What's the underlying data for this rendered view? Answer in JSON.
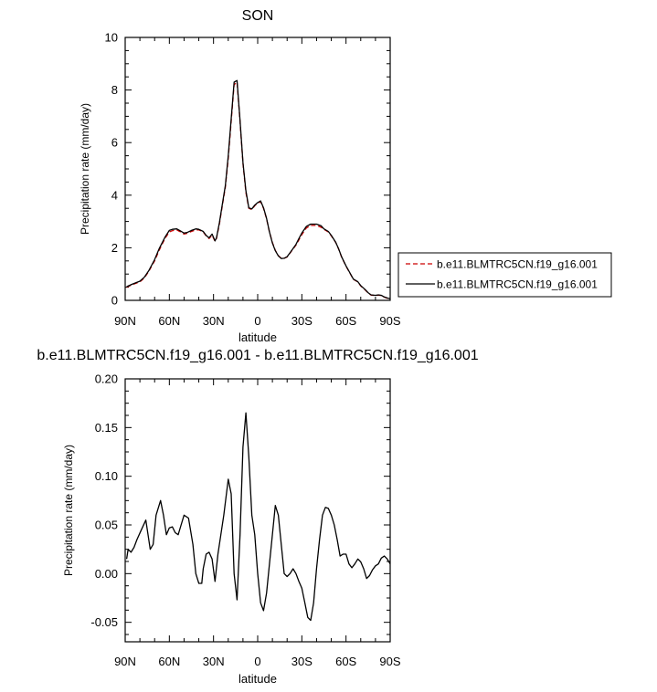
{
  "chart_data": [
    {
      "type": "line",
      "title": "SON",
      "xlabel": "latitude",
      "ylabel": "Precipitation rate (mm/day)",
      "xlim": [
        90,
        -90
      ],
      "ylim": [
        0,
        10
      ],
      "x_ticks": [
        90,
        60,
        30,
        0,
        -30,
        -60,
        -90
      ],
      "x_tick_labels": [
        "90N",
        "60N",
        "30N",
        "0",
        "30S",
        "60S",
        "90S"
      ],
      "y_ticks": [
        0,
        2,
        4,
        6,
        8,
        10
      ],
      "y_tick_labels": [
        "0",
        "2",
        "4",
        "6",
        "8",
        "10"
      ],
      "legend": "right",
      "series": [
        {
          "name": "b.e11.BLMTRC5CN.f19_g16.001",
          "color": "#cc0000",
          "dash": "dashed",
          "x": [
            89,
            85,
            80,
            77,
            74,
            70,
            67,
            63,
            60,
            58,
            55,
            53,
            50,
            48,
            45,
            42,
            40,
            37,
            35,
            33,
            31,
            29,
            28,
            26,
            24,
            22,
            20,
            18,
            16,
            14,
            12,
            10,
            8,
            6,
            4,
            2,
            0,
            -2,
            -4,
            -6,
            -8,
            -10,
            -12,
            -14,
            -16,
            -18,
            -20,
            -22,
            -24,
            -26,
            -28,
            -30,
            -33,
            -36,
            -40,
            -43,
            -45,
            -48,
            -50,
            -53,
            -55,
            -57,
            -60,
            -63,
            -65,
            -68,
            -70,
            -73,
            -75,
            -77,
            -80,
            -82,
            -84,
            -86,
            -88,
            -90
          ],
          "y": [
            0.5,
            0.6,
            0.7,
            0.85,
            1.1,
            1.5,
            1.9,
            2.35,
            2.6,
            2.65,
            2.68,
            2.62,
            2.52,
            2.55,
            2.62,
            2.68,
            2.68,
            2.6,
            2.45,
            2.35,
            2.48,
            2.25,
            2.35,
            2.9,
            3.6,
            4.3,
            5.4,
            6.8,
            8.2,
            8.3,
            6.8,
            5.2,
            4.1,
            3.5,
            3.45,
            3.6,
            3.7,
            3.75,
            3.5,
            3.1,
            2.6,
            2.2,
            1.9,
            1.7,
            1.6,
            1.6,
            1.65,
            1.8,
            1.95,
            2.1,
            2.3,
            2.5,
            2.75,
            2.85,
            2.85,
            2.78,
            2.7,
            2.6,
            2.45,
            2.2,
            1.95,
            1.65,
            1.3,
            1.0,
            0.8,
            0.7,
            0.55,
            0.4,
            0.28,
            0.2,
            0.18,
            0.2,
            0.18,
            0.12,
            0.08,
            0.05
          ]
        },
        {
          "name": "b.e11.BLMTRC5CN.f19_g16.001",
          "color": "#000000",
          "dash": "solid",
          "x": [
            89,
            85,
            80,
            77,
            74,
            70,
            67,
            63,
            60,
            58,
            55,
            53,
            50,
            48,
            45,
            42,
            40,
            37,
            35,
            33,
            31,
            29,
            28,
            26,
            24,
            22,
            20,
            18,
            16,
            14,
            12,
            10,
            8,
            6,
            4,
            2,
            0,
            -2,
            -4,
            -6,
            -8,
            -10,
            -12,
            -14,
            -16,
            -18,
            -20,
            -22,
            -24,
            -26,
            -28,
            -30,
            -33,
            -36,
            -40,
            -43,
            -45,
            -48,
            -50,
            -53,
            -55,
            -57,
            -60,
            -63,
            -65,
            -68,
            -70,
            -73,
            -75,
            -77,
            -80,
            -82,
            -84,
            -86,
            -88,
            -90
          ],
          "y": [
            0.52,
            0.62,
            0.73,
            0.88,
            1.13,
            1.55,
            1.96,
            2.4,
            2.66,
            2.7,
            2.72,
            2.66,
            2.56,
            2.58,
            2.66,
            2.72,
            2.7,
            2.62,
            2.47,
            2.38,
            2.52,
            2.26,
            2.38,
            2.95,
            3.65,
            4.36,
            5.5,
            6.9,
            8.3,
            8.36,
            6.84,
            5.24,
            4.17,
            3.52,
            3.48,
            3.62,
            3.72,
            3.78,
            3.52,
            3.12,
            2.6,
            2.18,
            1.89,
            1.69,
            1.59,
            1.6,
            1.66,
            1.81,
            1.97,
            2.13,
            2.35,
            2.56,
            2.81,
            2.9,
            2.9,
            2.84,
            2.72,
            2.62,
            2.47,
            2.21,
            1.96,
            1.66,
            1.31,
            1.01,
            0.81,
            0.71,
            0.56,
            0.41,
            0.29,
            0.21,
            0.19,
            0.21,
            0.19,
            0.13,
            0.09,
            0.06
          ]
        }
      ]
    },
    {
      "type": "line",
      "title": "b.e11.BLMTRC5CN.f19_g16.001 - b.e11.BLMTRC5CN.f19_g16.001",
      "xlabel": "latitude",
      "ylabel": "Precipitation rate (mm/day)",
      "xlim": [
        90,
        -90
      ],
      "ylim": [
        -0.07,
        0.2
      ],
      "x_ticks": [
        90,
        60,
        30,
        0,
        -30,
        -60,
        -90
      ],
      "x_tick_labels": [
        "90N",
        "60N",
        "30N",
        "0",
        "30S",
        "60S",
        "90S"
      ],
      "y_ticks": [
        -0.05,
        0.0,
        0.05,
        0.1,
        0.15,
        0.2
      ],
      "y_tick_labels": [
        "-0.05",
        "0.00",
        "0.05",
        "0.10",
        "0.15",
        "0.20"
      ],
      "series": [
        {
          "color": "#000000",
          "dash": "solid",
          "x": [
            89,
            88,
            86,
            84,
            82,
            79,
            76,
            73,
            71,
            69,
            66,
            64,
            62,
            60,
            58,
            56,
            54,
            52,
            50,
            47,
            44,
            42,
            40,
            38,
            37,
            35,
            33,
            31,
            29,
            27,
            25,
            23,
            21,
            20,
            18,
            16,
            14,
            12,
            10,
            8,
            6,
            4,
            2,
            0,
            -2,
            -4,
            -6,
            -8,
            -10,
            -12,
            -14,
            -16,
            -18,
            -20,
            -22,
            -24,
            -26,
            -28,
            -30,
            -32,
            -34,
            -36,
            -38,
            -40,
            -42,
            -44,
            -46,
            -48,
            -50,
            -52,
            -54,
            -56,
            -58,
            -60,
            -62,
            -64,
            -66,
            -68,
            -70,
            -72,
            -74,
            -76,
            -78,
            -80,
            -82,
            -84,
            -86,
            -88,
            -90
          ],
          "y": [
            0.015,
            0.025,
            0.022,
            0.027,
            0.035,
            0.045,
            0.055,
            0.025,
            0.03,
            0.06,
            0.075,
            0.06,
            0.04,
            0.047,
            0.048,
            0.042,
            0.04,
            0.05,
            0.06,
            0.057,
            0.03,
            0.0,
            -0.01,
            -0.01,
            0.005,
            0.02,
            0.022,
            0.015,
            -0.008,
            0.02,
            0.04,
            0.06,
            0.085,
            0.097,
            0.082,
            0.0,
            -0.027,
            0.04,
            0.13,
            0.165,
            0.12,
            0.06,
            0.04,
            0.0,
            -0.03,
            -0.038,
            -0.02,
            0.01,
            0.04,
            0.07,
            0.06,
            0.03,
            0.0,
            -0.003,
            0.0,
            0.005,
            0.0,
            -0.008,
            -0.015,
            -0.03,
            -0.045,
            -0.048,
            -0.03,
            0.005,
            0.035,
            0.06,
            0.068,
            0.067,
            0.06,
            0.05,
            0.035,
            0.018,
            0.02,
            0.02,
            0.01,
            0.006,
            0.01,
            0.015,
            0.012,
            0.005,
            -0.005,
            -0.002,
            0.004,
            0.008,
            0.01,
            0.016,
            0.018,
            0.015,
            0.01
          ]
        }
      ]
    }
  ]
}
